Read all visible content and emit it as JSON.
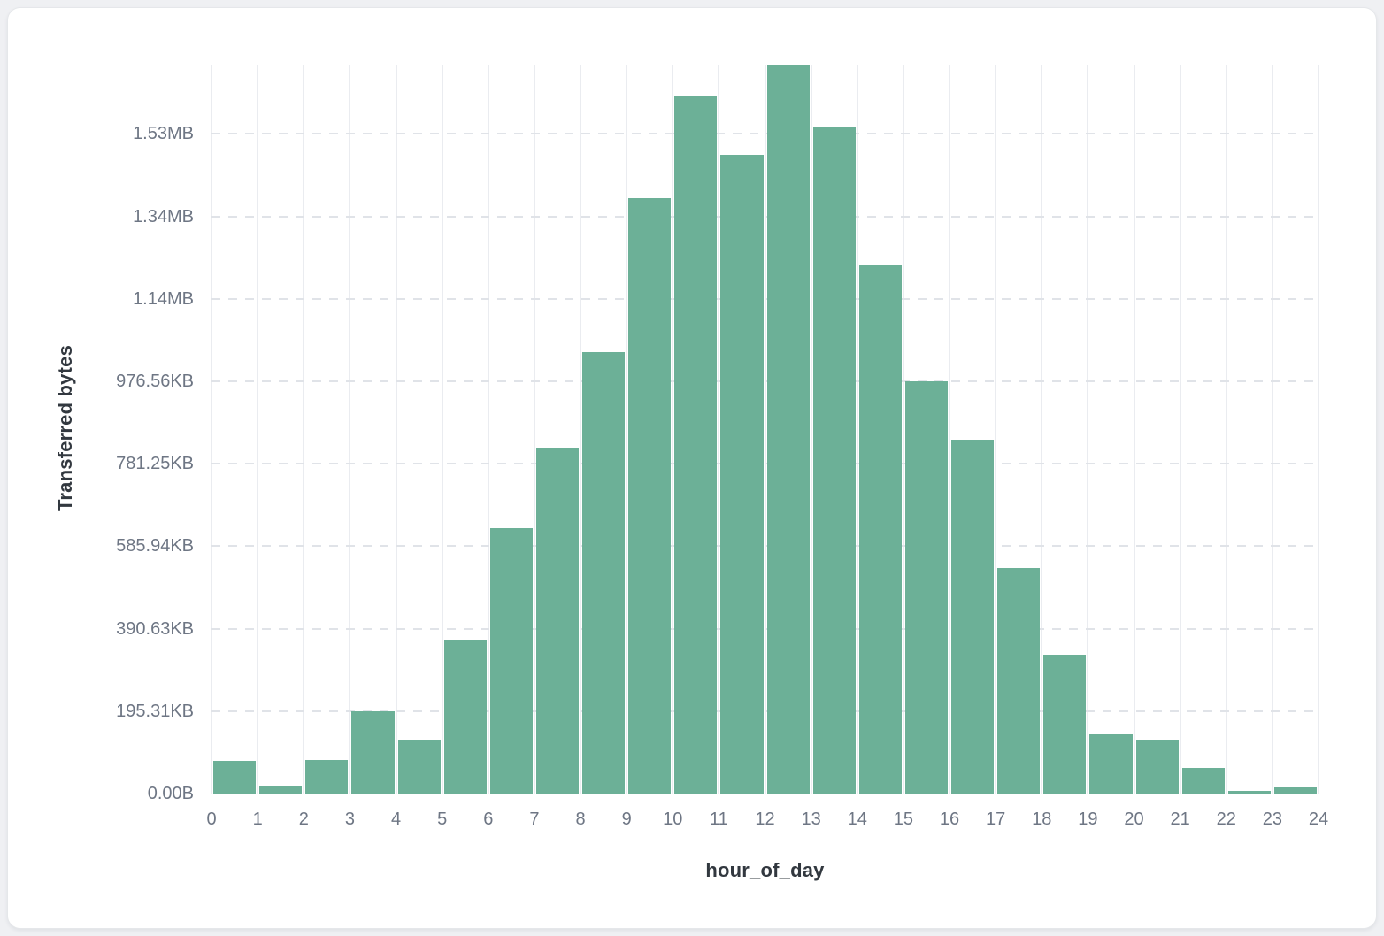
{
  "chart_data": {
    "type": "bar",
    "title": "",
    "xlabel": "hour_of_day",
    "ylabel": "Transferred bytes",
    "categories": [
      0,
      1,
      2,
      3,
      4,
      5,
      6,
      7,
      8,
      9,
      10,
      11,
      12,
      13,
      14,
      15,
      16,
      17,
      18,
      19,
      20,
      21,
      22,
      23
    ],
    "values": [
      79000,
      19000,
      81000,
      200000,
      128000,
      373000,
      644000,
      839000,
      1070000,
      1445000,
      1693000,
      1550000,
      1768000,
      1616000,
      1280000,
      1000000,
      858000,
      548000,
      336000,
      143000,
      128000,
      62000,
      6000,
      15000
    ],
    "x_tick_labels": [
      "0",
      "1",
      "2",
      "3",
      "4",
      "5",
      "6",
      "7",
      "8",
      "9",
      "10",
      "11",
      "12",
      "13",
      "14",
      "15",
      "16",
      "17",
      "18",
      "19",
      "20",
      "21",
      "22",
      "23",
      "24"
    ],
    "y_ticks": [
      {
        "label": "0.00B",
        "value": 0
      },
      {
        "label": "195.31KB",
        "value": 200000
      },
      {
        "label": "390.63KB",
        "value": 400000
      },
      {
        "label": "585.94KB",
        "value": 600000
      },
      {
        "label": "781.25KB",
        "value": 800000
      },
      {
        "label": "976.56KB",
        "value": 1000000
      },
      {
        "label": "1.14MB",
        "value": 1200000
      },
      {
        "label": "1.34MB",
        "value": 1400000
      },
      {
        "label": "1.53MB",
        "value": 1600000
      }
    ],
    "xlim": [
      0,
      24
    ],
    "ylim": [
      0,
      1768000
    ],
    "grid": {
      "vertical": "solid",
      "horizontal": "dashed"
    },
    "legend": "none"
  },
  "colors": {
    "bar": "#6cb097",
    "page_background": "#eff0f3",
    "card_background": "#ffffff",
    "vertical_grid": "#eaecf0",
    "horizontal_grid": "#e0e3e8",
    "tick_text": "#6e7684",
    "title_text": "#32383f"
  }
}
